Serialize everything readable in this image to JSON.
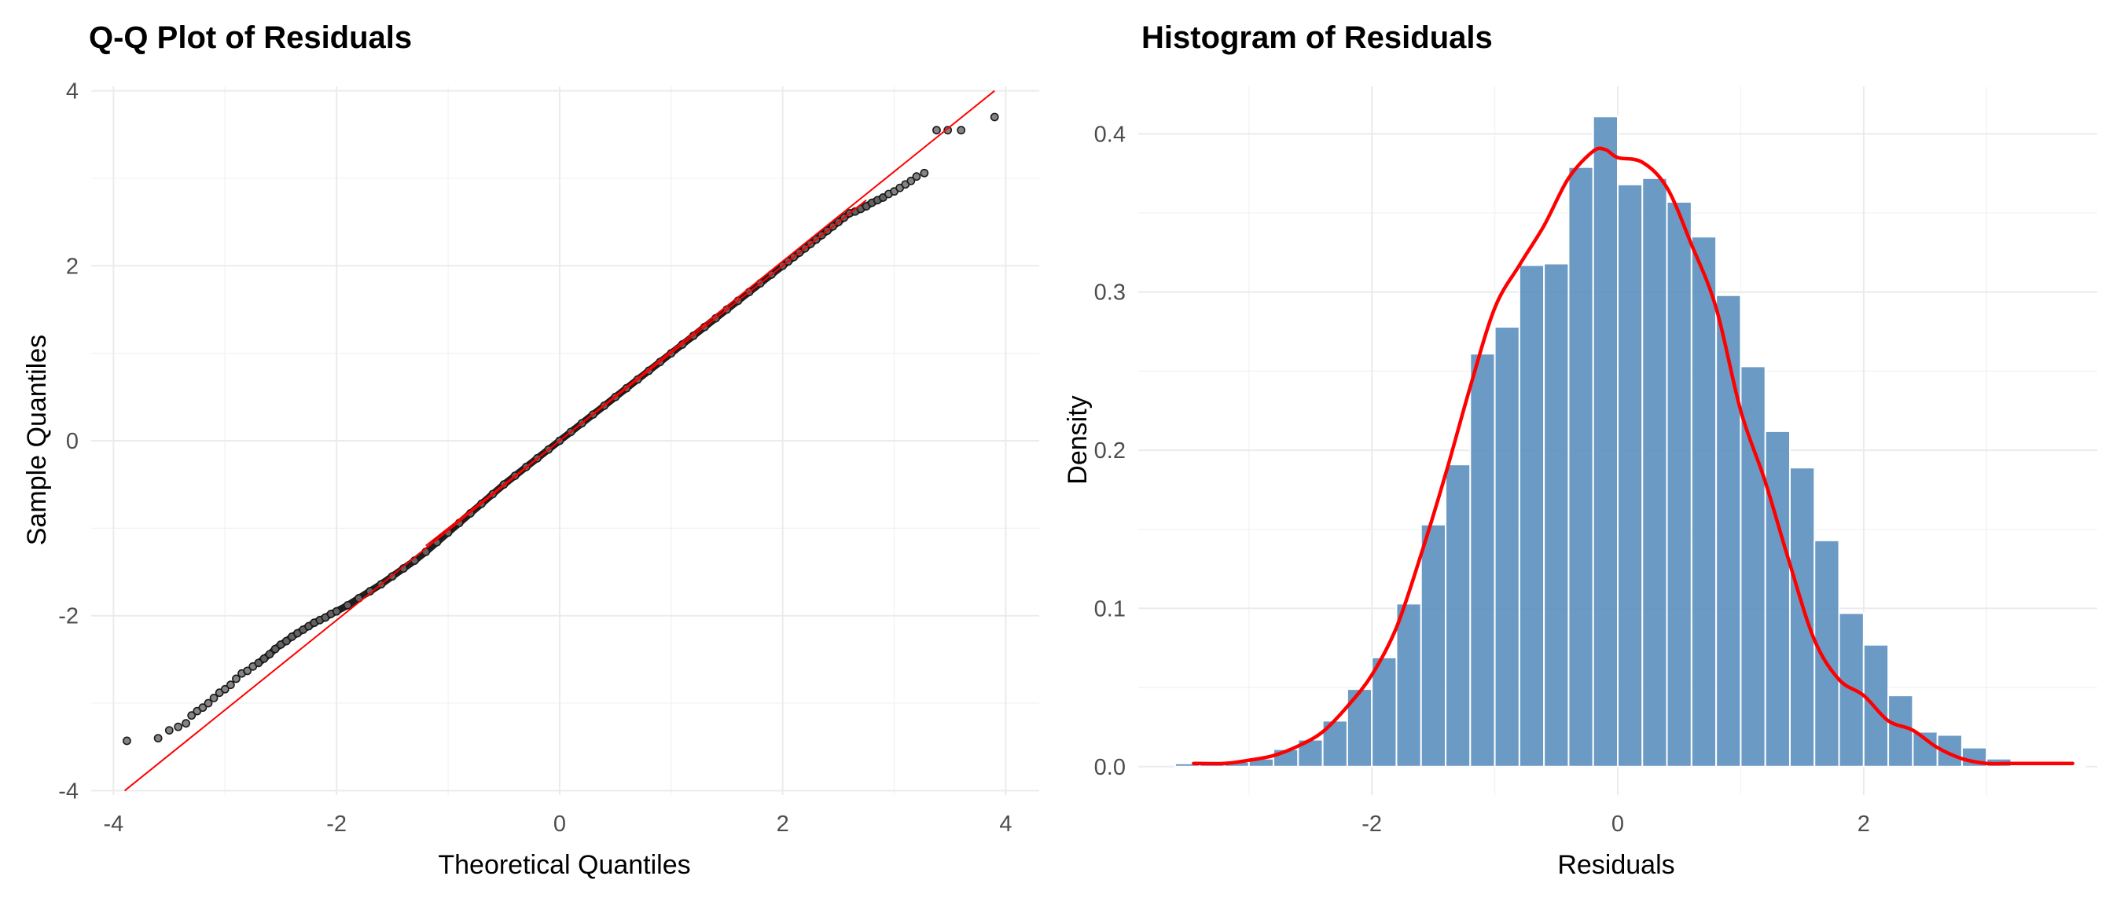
{
  "chart_data": [
    {
      "type": "scatter",
      "title": "Q-Q Plot of Residuals",
      "xlabel": "Theoretical Quantiles",
      "ylabel": "Sample Quantiles",
      "xlim": [
        -4.2,
        4.3
      ],
      "ylim": [
        -4.05,
        4.05
      ],
      "xticks": [
        -4,
        -2,
        0,
        2,
        4
      ],
      "yticks": [
        -4,
        -2,
        0,
        2,
        4
      ],
      "grid": true,
      "legend": "none",
      "series": [
        {
          "kind": "points",
          "color": "#3a3a3a",
          "x": [
            -3.88,
            -3.6,
            -3.5,
            -3.42,
            -3.35,
            -3.3,
            -3.25,
            -3.2,
            -3.15,
            -3.1,
            -3.05,
            -3.0,
            -2.95,
            -2.9,
            -2.85,
            -2.8,
            -2.75,
            -2.7,
            -2.65,
            -2.6,
            -2.55,
            -2.5,
            -2.45,
            -2.4,
            -2.35,
            -2.3,
            -2.25,
            -2.2,
            -2.15,
            -2.1,
            -2.05,
            -2.0,
            -1.9,
            -1.8,
            -1.7,
            -1.6,
            -1.5,
            -1.4,
            -1.3,
            -1.2,
            -1.1,
            -1.0,
            -0.9,
            -0.8,
            -0.7,
            -0.6,
            -0.5,
            -0.4,
            -0.3,
            -0.2,
            -0.1,
            0.0,
            0.1,
            0.2,
            0.3,
            0.4,
            0.5,
            0.6,
            0.7,
            0.8,
            0.9,
            1.0,
            1.1,
            1.2,
            1.3,
            1.4,
            1.5,
            1.6,
            1.7,
            1.8,
            1.9,
            2.0,
            2.05,
            2.1,
            2.15,
            2.2,
            2.25,
            2.3,
            2.35,
            2.4,
            2.45,
            2.5,
            2.55,
            2.6,
            2.65,
            2.7,
            2.75,
            2.8,
            2.85,
            2.9,
            2.95,
            3.0,
            3.05,
            3.1,
            3.15,
            3.2,
            3.27,
            3.38,
            3.48,
            3.6,
            3.9
          ],
          "y": [
            -3.43,
            -3.4,
            -3.31,
            -3.27,
            -3.23,
            -3.14,
            -3.09,
            -3.05,
            -3.0,
            -2.94,
            -2.88,
            -2.84,
            -2.79,
            -2.72,
            -2.66,
            -2.63,
            -2.58,
            -2.54,
            -2.49,
            -2.44,
            -2.38,
            -2.33,
            -2.29,
            -2.24,
            -2.2,
            -2.16,
            -2.12,
            -2.08,
            -2.05,
            -2.02,
            -1.98,
            -1.95,
            -1.88,
            -1.8,
            -1.72,
            -1.64,
            -1.55,
            -1.46,
            -1.37,
            -1.27,
            -1.16,
            -1.05,
            -0.94,
            -0.83,
            -0.72,
            -0.61,
            -0.5,
            -0.4,
            -0.3,
            -0.2,
            -0.1,
            0.0,
            0.1,
            0.2,
            0.3,
            0.4,
            0.5,
            0.6,
            0.7,
            0.8,
            0.9,
            1.0,
            1.1,
            1.2,
            1.3,
            1.4,
            1.5,
            1.6,
            1.7,
            1.8,
            1.9,
            2.0,
            2.05,
            2.1,
            2.15,
            2.2,
            2.25,
            2.3,
            2.35,
            2.4,
            2.45,
            2.5,
            2.55,
            2.6,
            2.62,
            2.65,
            2.68,
            2.72,
            2.75,
            2.78,
            2.82,
            2.85,
            2.89,
            2.93,
            2.97,
            3.02,
            3.06,
            3.55,
            3.55,
            3.55,
            3.7
          ]
        },
        {
          "kind": "reference-line",
          "color": "#ff0000",
          "x": [
            -3.9,
            3.9
          ],
          "y": [
            -4.0,
            4.0
          ]
        }
      ]
    },
    {
      "type": "bar",
      "title": "Histogram of Residuals",
      "xlabel": "Residuals",
      "ylabel": "Density",
      "xlim": [
        -3.9,
        3.9
      ],
      "ylim": [
        -0.018,
        0.43
      ],
      "xticks": [
        -2,
        0,
        2
      ],
      "yticks": [
        0.0,
        0.1,
        0.2,
        0.3,
        0.4
      ],
      "ytick_labels": [
        "0.0",
        "0.1",
        "0.2",
        "0.3",
        "0.4"
      ],
      "xtick_labels": [
        "-2",
        "0",
        "2"
      ],
      "grid": true,
      "legend": "none",
      "bins": {
        "width": 0.2,
        "x": [
          -3.5,
          -3.3,
          -3.1,
          -2.9,
          -2.7,
          -2.5,
          -2.3,
          -2.1,
          -1.9,
          -1.7,
          -1.5,
          -1.3,
          -1.1,
          -0.9,
          -0.7,
          -0.5,
          -0.3,
          -0.1,
          0.1,
          0.3,
          0.5,
          0.7,
          0.9,
          1.1,
          1.3,
          1.5,
          1.7,
          1.9,
          2.1,
          2.3,
          2.5,
          2.7,
          2.9,
          3.1,
          3.3,
          3.5,
          3.7
        ],
        "values": [
          0.002,
          0.002,
          0.003,
          0.005,
          0.011,
          0.017,
          0.029,
          0.049,
          0.069,
          0.103,
          0.153,
          0.191,
          0.261,
          0.278,
          0.317,
          0.318,
          0.379,
          0.411,
          0.368,
          0.372,
          0.357,
          0.335,
          0.298,
          0.253,
          0.212,
          0.189,
          0.143,
          0.097,
          0.077,
          0.045,
          0.022,
          0.02,
          0.012,
          0.005,
          0.001,
          0.001,
          0.001
        ],
        "fill": "#5b8fbf",
        "edge": "#ffffff"
      },
      "density": {
        "color": "#ff0000",
        "x": [
          -3.45,
          -3.2,
          -3.0,
          -2.8,
          -2.6,
          -2.4,
          -2.2,
          -2.0,
          -1.8,
          -1.6,
          -1.4,
          -1.2,
          -1.0,
          -0.8,
          -0.6,
          -0.4,
          -0.2,
          -0.1,
          0.0,
          0.2,
          0.4,
          0.6,
          0.8,
          1.0,
          1.2,
          1.4,
          1.6,
          1.8,
          2.0,
          2.2,
          2.4,
          2.6,
          2.8,
          3.0,
          3.2,
          3.4,
          3.7
        ],
        "y": [
          0.002,
          0.002,
          0.004,
          0.007,
          0.013,
          0.022,
          0.038,
          0.058,
          0.088,
          0.134,
          0.185,
          0.24,
          0.29,
          0.317,
          0.342,
          0.372,
          0.389,
          0.39,
          0.385,
          0.382,
          0.366,
          0.33,
          0.29,
          0.225,
          0.18,
          0.128,
          0.08,
          0.055,
          0.045,
          0.029,
          0.023,
          0.012,
          0.005,
          0.002,
          0.002,
          0.002,
          0.002
        ]
      }
    }
  ]
}
